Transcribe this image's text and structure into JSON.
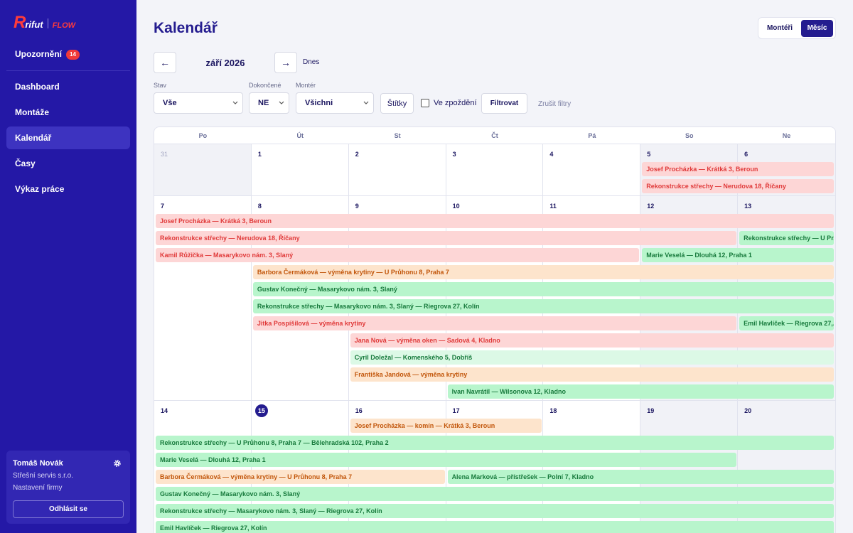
{
  "sidebar": {
    "logo": {
      "mark": "R",
      "name": "rifut",
      "product": "FLOW"
    },
    "notifications": {
      "label": "Upozornění",
      "count": 14
    },
    "nav": [
      {
        "label": "Dashboard"
      },
      {
        "label": "Montáže"
      },
      {
        "label": "Kalendář",
        "active": true
      },
      {
        "label": "Časy"
      },
      {
        "label": "Výkaz práce"
      }
    ],
    "user": {
      "name": "Tomáš Novák",
      "company": "Střešní servis s.r.o.",
      "settings": "Nastavení firmy",
      "logout": "Odhlásit se"
    }
  },
  "header": {
    "title": "Kalendář",
    "view_toggle": [
      {
        "label": "Montéři"
      },
      {
        "label": "Měsíc",
        "active": true
      }
    ]
  },
  "toolbar": {
    "prev": "←",
    "month": "září 2026",
    "next": "→",
    "today": "Dnes"
  },
  "filters": {
    "status": {
      "label": "Stav",
      "value": "Vše"
    },
    "completed": {
      "label": "Dokončené",
      "value": "NE"
    },
    "worker": {
      "label": "Montér",
      "value": "Všichni"
    },
    "tags": "Štítky",
    "late": {
      "label": "Ve zpoždění",
      "checked": false
    },
    "apply": "Filtrovat",
    "clear": "Zrušit filtry"
  },
  "calendar": {
    "weekdays": [
      "Po",
      "Út",
      "St",
      "Čt",
      "Pá",
      "So",
      "Ne"
    ],
    "today": 15,
    "weeks": [
      {
        "days": [
          31,
          1,
          2,
          3,
          4,
          5,
          6
        ],
        "events": [
          {
            "label": "Josef Procházka — Krátká 3, Beroun",
            "color": "#fdd6d6"
          },
          {
            "label": "Rekonstrukce střechy — Nerudova 18, Říčany",
            "color": "#fdd6d6"
          }
        ]
      },
      {
        "days": [
          7,
          8,
          9,
          10,
          11,
          12,
          13
        ],
        "events": [
          {
            "label": "Josef Procházka — Krátká 3, Beroun",
            "color": "#fdd6d6"
          },
          {
            "label": "Rekonstrukce střechy — Nerudova 18, Říčany",
            "color": "#fdd6d6"
          },
          {
            "label": "Rekonstrukce střechy — U Pr...",
            "color": "#b8f5cc"
          },
          {
            "label": "Kamil Růžička — Masarykovo nám. 3, Slaný",
            "color": "#fdd6d6"
          },
          {
            "label": "Marie Veselá — Dlouhá 12, Praha 1",
            "color": "#b8f5cc"
          },
          {
            "label": "Barbora Čermáková — výměna krytiny — U Průhonu 8, Praha 7",
            "color": "#fde4cc"
          },
          {
            "label": "Gustav Konečný — Masarykovo nám. 3, Slaný",
            "color": "#b8f5cc"
          },
          {
            "label": "Rekonstrukce střechy — Masarykovo nám. 3, Slaný — Riegrova 27, Kolín",
            "color": "#b8f5cc"
          },
          {
            "label": "Jitka Pospíšilová — výměna krytiny",
            "color": "#fdd6d6"
          },
          {
            "label": "Emil Havlíček — Riegrova 27,...",
            "color": "#b8f5cc"
          },
          {
            "label": "Jana Nová — výměna oken — Sadová 4, Kladno",
            "color": "#fdd6d6"
          },
          {
            "label": "Cyril Doležal — Komenského 5, Dobříš",
            "color": "#dcf9e6"
          },
          {
            "label": "Františka Jandová — výměna krytiny",
            "color": "#fde4cc"
          },
          {
            "label": "Ivan Navrátil — Wilsonova 12, Kladno",
            "color": "#b8f5cc"
          }
        ]
      },
      {
        "days": [
          14,
          15,
          16,
          17,
          18,
          19,
          20
        ],
        "events": [
          {
            "label": "Josef Procházka — komín — Krátká 3, Beroun",
            "color": "#fde4cc"
          },
          {
            "label": "Rekonstrukce střechy — U Průhonu 8, Praha 7 — Bělehradská 102, Praha 2",
            "color": "#b8f5cc"
          },
          {
            "label": "Marie Veselá — Dlouhá 12, Praha 1",
            "color": "#b8f5cc"
          },
          {
            "label": "Barbora Čermáková — výměna krytiny — U Průhonu 8, Praha 7",
            "color": "#fde4cc"
          },
          {
            "label": "Alena Marková — přístřešek — Polní 7, Kladno",
            "color": "#b8f5cc"
          },
          {
            "label": "Gustav Konečný — Masarykovo nám. 3, Slaný",
            "color": "#b8f5cc"
          },
          {
            "label": "Rekonstrukce střechy — Masarykovo nám. 3, Slaný — Riegrova 27, Kolín",
            "color": "#b8f5cc"
          },
          {
            "label": "Emil Havlíček — Riegrova 27, Kolín",
            "color": "#b8f5cc"
          }
        ]
      }
    ]
  }
}
